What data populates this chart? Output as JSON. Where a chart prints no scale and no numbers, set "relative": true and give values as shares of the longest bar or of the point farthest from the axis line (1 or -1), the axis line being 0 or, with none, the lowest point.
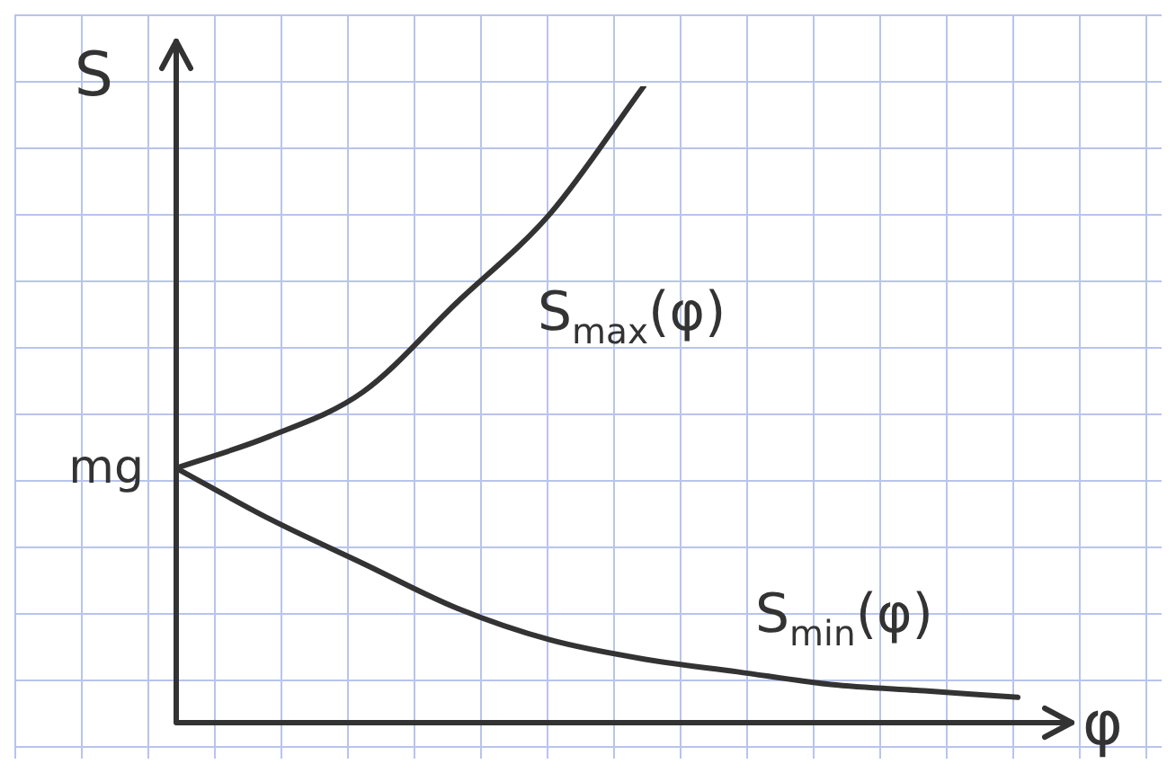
{
  "chart_data": {
    "type": "line",
    "xlabel": "φ",
    "ylabel": "S",
    "relative": true,
    "categories": [
      null,
      null,
      null,
      null,
      null,
      null,
      null,
      null,
      null,
      null
    ],
    "series": [
      {
        "name": "S$_{max}$(φ)",
        "color": "#333333",
        "values": [
          0.4,
          0.45,
          0.52,
          0.66,
          0.8,
          1.0,
          null,
          null,
          null,
          null
        ]
      },
      {
        "name": "S$_{min}$(φ)",
        "color": "#333333",
        "values": [
          0.4,
          0.32,
          0.25,
          0.18,
          0.13,
          0.1,
          0.08,
          0.06,
          0.05,
          0.04
        ]
      }
    ],
    "annotations": [
      "mg"
    ]
  }
}
